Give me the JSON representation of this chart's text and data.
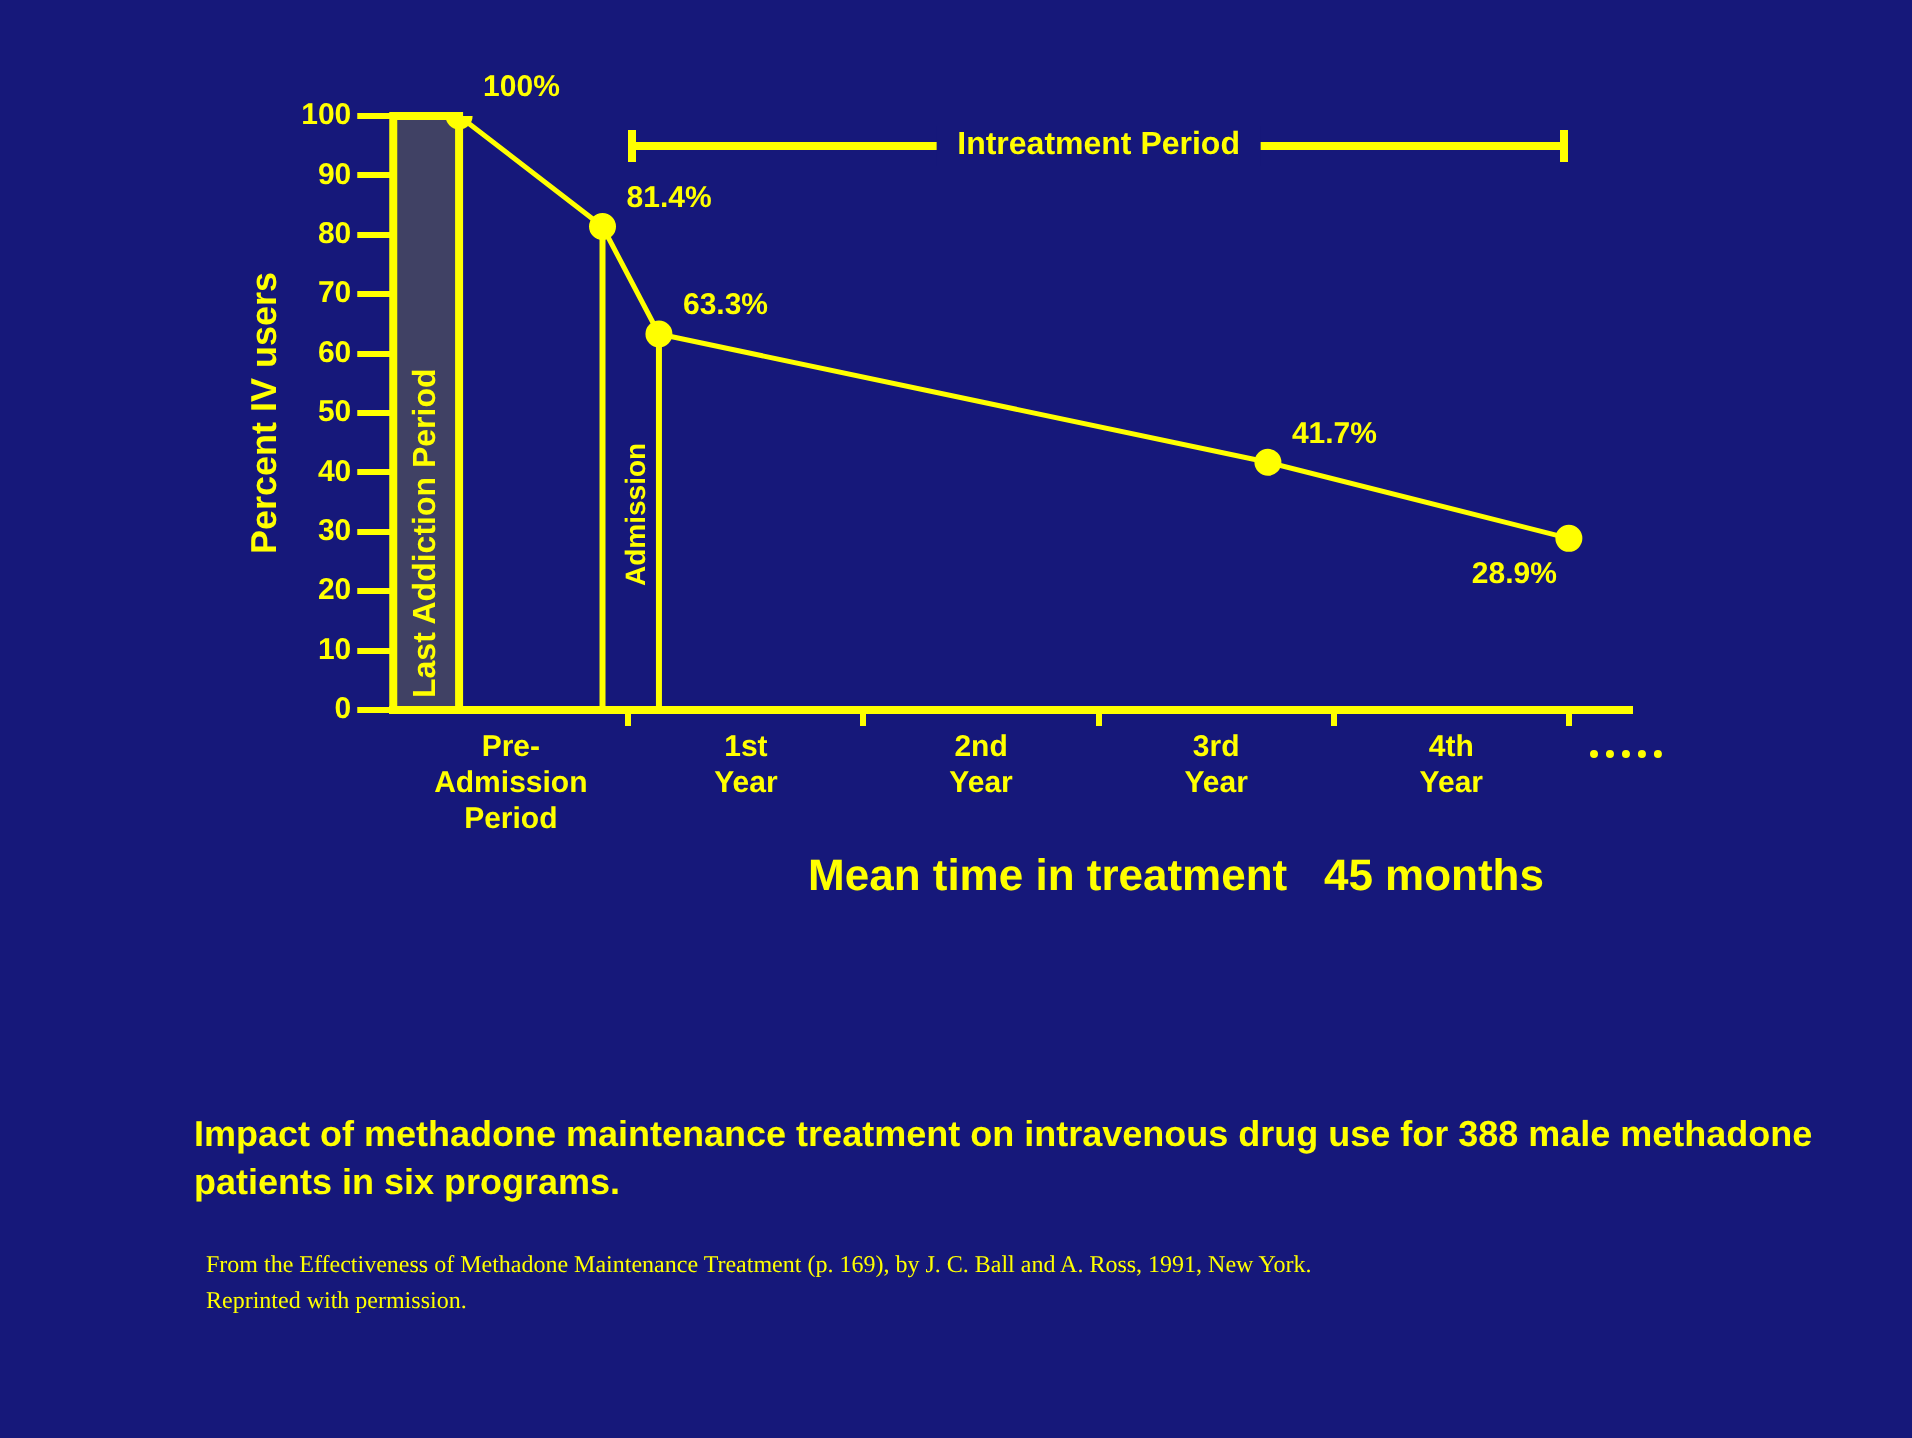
{
  "chart_data": {
    "type": "line",
    "x": [
      -0.72,
      -0.11,
      0.13,
      2.72,
      4.0
    ],
    "values": [
      100,
      81.4,
      63.3,
      41.7,
      28.9
    ],
    "value_labels": [
      "100%",
      "81.4%",
      "63.3%",
      "41.7%",
      "28.9%"
    ],
    "color": "#ffff00",
    "marker": "circle",
    "line_style": "solid",
    "ylabel": "Percent IV users",
    "xlim": [
      -1,
      4.26
    ],
    "xticks": [
      {
        "value": -0.5,
        "label": "Pre-Admission Period"
      },
      {
        "value": 0,
        "label": null
      },
      {
        "value": 0.5,
        "label": "1st Year"
      },
      {
        "value": 1,
        "label": null
      },
      {
        "value": 1.5,
        "label": "2nd Year"
      },
      {
        "value": 2,
        "label": null
      },
      {
        "value": 2.5,
        "label": "3rd Year"
      },
      {
        "value": 3,
        "label": null
      },
      {
        "value": 3.5,
        "label": "4th Year"
      },
      {
        "value": 4,
        "label": null
      }
    ],
    "ylim": [
      0,
      100
    ],
    "yticks": [
      0,
      10,
      20,
      30,
      40,
      50,
      60,
      70,
      80,
      90,
      100
    ],
    "grid": false,
    "legend": false,
    "bands": [
      {
        "axis": "x",
        "from": -1,
        "to": -0.72,
        "label": "Last Addiction Period"
      }
    ],
    "ref_lines": [
      {
        "axis": "x",
        "value": -0.11,
        "label": null
      },
      {
        "axis": "x",
        "value": 0.13,
        "label": "Admission"
      }
    ],
    "annotations": [
      "Intreatment Period",
      "Mean time in treatment   45 months",
      "Impact of methadone maintenance treatment on intravenous drug use for 388 male methadone patients in six programs.",
      "From the Effectiveness of Methadone Maintenance Treatment (p. 169), by J. C. Ball and A. Ross, 1991, New York.",
      "Reprinted with permission."
    ]
  }
}
